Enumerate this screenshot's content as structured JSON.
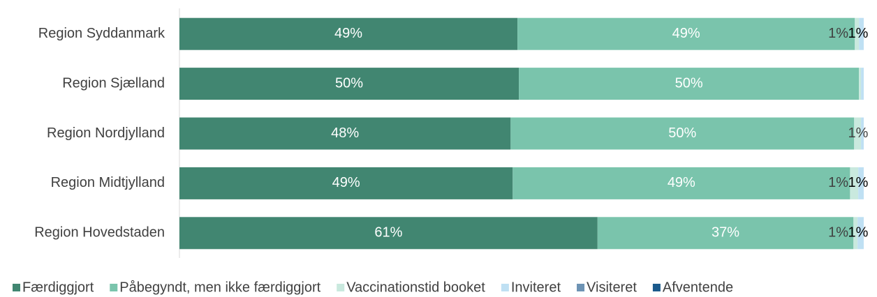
{
  "chart_data": {
    "type": "stacked-barh",
    "categories": [
      "Region Syddanmark",
      "Region Sjælland",
      "Region Nordjylland",
      "Region Midtjylland",
      "Region Hovedstaden"
    ],
    "xlim": [
      0,
      100
    ],
    "series": [
      {
        "name": "Færdiggjort",
        "color": "#418671",
        "values": [
          49.4,
          49.6,
          48.4,
          48.7,
          61.1
        ],
        "value_labels": [
          "49%",
          "50%",
          "48%",
          "49%",
          "61%"
        ]
      },
      {
        "name": "Påbegyndt, men ikke færdiggjort",
        "color": "#7ac4ac",
        "values": [
          49.3,
          49.7,
          50.2,
          49.3,
          37.4
        ],
        "value_labels": [
          "49%",
          "50%",
          "50%",
          "49%",
          "37%"
        ]
      },
      {
        "name": "Vaccinationstid booket",
        "color": "#c9e9de",
        "values": [
          0.6,
          0.3,
          1.0,
          1.2,
          0.6
        ],
        "value_labels": [
          "1%",
          null,
          "1%",
          "1%",
          "1%"
        ]
      },
      {
        "name": "Inviteret",
        "color": "#bfe0f3",
        "values": [
          0.7,
          0.4,
          0.4,
          0.8,
          0.9
        ],
        "value_labels": [
          "1%",
          null,
          null,
          "1%",
          "1%"
        ]
      },
      {
        "name": "Visiteret",
        "color": "#6d93b4",
        "values": [
          0,
          0,
          0,
          0,
          0
        ]
      },
      {
        "name": "Afventende",
        "color": "#1b5a8c",
        "values": [
          0,
          0,
          0,
          0,
          0
        ]
      }
    ],
    "legend": "bottom"
  }
}
